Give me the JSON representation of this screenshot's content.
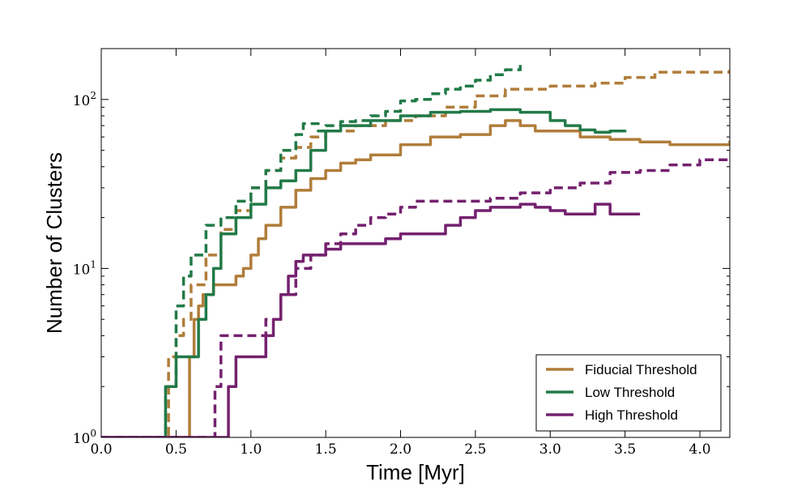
{
  "chart_data": {
    "type": "line",
    "title": "",
    "xlabel": "Time [Myr]",
    "ylabel": "Number of Clusters",
    "xscale": "linear",
    "yscale": "log",
    "xlim": [
      0.0,
      4.2
    ],
    "ylim": [
      1,
      200
    ],
    "grid": false,
    "legend_position": "lower-right",
    "x_ticks": [
      "0.0",
      "0.5",
      "1.0",
      "1.5",
      "2.0",
      "2.5",
      "3.0",
      "3.5",
      "4.0"
    ],
    "x_tick_values": [
      0,
      0.5,
      1.0,
      1.5,
      2.0,
      2.5,
      3.0,
      3.5,
      4.0
    ],
    "y_ticks": [
      {
        "value": 1,
        "base": "10",
        "exp": "0"
      },
      {
        "value": 10,
        "base": "10",
        "exp": "1"
      },
      {
        "value": 100,
        "base": "10",
        "exp": "2"
      }
    ],
    "legend": [
      {
        "label": "Fiducial Threshold",
        "color": "#b07d3a"
      },
      {
        "label": "Low Threshold",
        "color": "#227a48"
      },
      {
        "label": "High Threshold",
        "color": "#74216e"
      }
    ],
    "series": [
      {
        "name": "Fiducial Threshold",
        "style": "solid",
        "color": "#b07d3a",
        "x": [
          0.0,
          0.59,
          0.59,
          0.62,
          0.65,
          0.68,
          0.75,
          0.8,
          0.9,
          0.95,
          1.0,
          1.05,
          1.1,
          1.2,
          1.3,
          1.4,
          1.5,
          1.6,
          1.7,
          1.8,
          2.0,
          2.2,
          2.4,
          2.6,
          2.7,
          2.8,
          2.9,
          3.0,
          3.2,
          3.4,
          3.6,
          3.8,
          4.0,
          4.2
        ],
        "y": [
          1,
          1,
          3,
          5,
          6,
          7,
          8,
          8,
          9,
          10,
          12,
          15,
          18,
          23,
          29,
          34,
          38,
          42,
          44,
          47,
          54,
          60,
          62,
          70,
          75,
          70,
          65,
          65,
          60,
          58,
          56,
          54,
          54,
          57
        ]
      },
      {
        "name": "Fiducial Threshold",
        "style": "dashed",
        "color": "#b07d3a",
        "x": [
          0.0,
          0.44,
          0.45,
          0.5,
          0.55,
          0.6,
          0.7,
          0.8,
          0.9,
          1.0,
          1.1,
          1.2,
          1.3,
          1.4,
          1.5,
          1.7,
          1.9,
          2.1,
          2.3,
          2.5,
          2.7,
          3.0,
          3.3,
          3.5,
          3.7,
          4.0,
          4.2
        ],
        "y": [
          1,
          1,
          3,
          4,
          5,
          8,
          12,
          17,
          22,
          30,
          38,
          45,
          52,
          60,
          65,
          70,
          75,
          80,
          90,
          105,
          115,
          120,
          125,
          135,
          145,
          145,
          150
        ]
      },
      {
        "name": "Low Threshold",
        "style": "solid",
        "color": "#227a48",
        "x": [
          0.0,
          0.43,
          0.43,
          0.5,
          0.55,
          0.65,
          0.7,
          0.75,
          0.8,
          0.9,
          1.0,
          1.1,
          1.2,
          1.3,
          1.4,
          1.5,
          1.6,
          1.8,
          2.0,
          2.2,
          2.4,
          2.6,
          2.8,
          3.0,
          3.1,
          3.2,
          3.3,
          3.4,
          3.5
        ],
        "y": [
          1,
          1,
          2,
          3,
          3,
          5,
          7,
          10,
          16,
          20,
          24,
          30,
          33,
          38,
          50,
          65,
          70,
          75,
          80,
          84,
          85,
          87,
          84,
          75,
          70,
          66,
          64,
          65,
          66
        ]
      },
      {
        "name": "Low Threshold",
        "style": "dashed",
        "color": "#227a48",
        "x": [
          0.0,
          0.42,
          0.43,
          0.5,
          0.55,
          0.6,
          0.7,
          0.8,
          0.9,
          1.0,
          1.1,
          1.2,
          1.3,
          1.35,
          1.45,
          1.5,
          1.6,
          1.7,
          1.8,
          1.9,
          2.0,
          2.1,
          2.2,
          2.3,
          2.4,
          2.5,
          2.6,
          2.7,
          2.8
        ],
        "y": [
          1,
          1,
          2,
          6,
          9,
          12,
          18,
          20,
          25,
          30,
          38,
          50,
          62,
          72,
          65,
          70,
          74,
          75,
          80,
          85,
          98,
          100,
          108,
          115,
          120,
          130,
          140,
          150,
          160
        ]
      },
      {
        "name": "High Threshold",
        "style": "solid",
        "color": "#74216e",
        "x": [
          0.0,
          0.85,
          0.85,
          0.9,
          0.9,
          1.1,
          1.1,
          1.15,
          1.2,
          1.25,
          1.3,
          1.35,
          1.4,
          1.5,
          1.6,
          1.7,
          1.8,
          1.9,
          2.0,
          2.1,
          2.2,
          2.3,
          2.4,
          2.5,
          2.6,
          2.7,
          2.8,
          2.9,
          3.0,
          3.1,
          3.2,
          3.3,
          3.4,
          3.5,
          3.6
        ],
        "y": [
          1,
          1,
          2,
          2,
          3,
          3,
          4,
          5,
          7,
          9,
          11,
          12,
          12,
          13,
          14,
          14,
          14,
          15,
          16,
          16,
          16,
          18,
          20,
          22,
          23,
          23,
          24,
          23,
          22,
          21,
          21,
          24,
          21,
          21,
          21
        ]
      },
      {
        "name": "High Threshold",
        "style": "dashed",
        "color": "#74216e",
        "x": [
          0.0,
          0.76,
          0.76,
          0.8,
          0.8,
          0.9,
          1.0,
          1.1,
          1.15,
          1.2,
          1.3,
          1.4,
          1.5,
          1.6,
          1.7,
          1.8,
          1.9,
          2.0,
          2.1,
          2.2,
          2.4,
          2.6,
          2.8,
          3.0,
          3.2,
          3.4,
          3.6,
          3.8,
          4.0,
          4.2
        ],
        "y": [
          1,
          1,
          2,
          3,
          4,
          4,
          4,
          5,
          5,
          7,
          10,
          12,
          14,
          16,
          18,
          20,
          21,
          23,
          25,
          25,
          25,
          26,
          28,
          30,
          32,
          37,
          38,
          41,
          44,
          45
        ]
      }
    ]
  }
}
